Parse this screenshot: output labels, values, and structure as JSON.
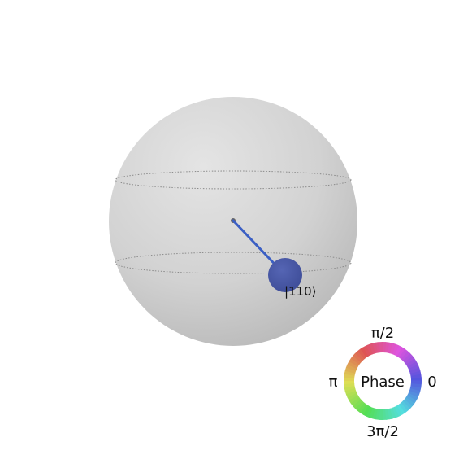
{
  "diagram": {
    "type": "qsphere",
    "states": [
      {
        "label": "|110⟩",
        "probability": 1.0,
        "phase": "0",
        "color": "#4a5aa8"
      }
    ]
  },
  "phase_legend": {
    "title": "Phase",
    "label_top": "π/2",
    "label_left": "π",
    "label_right": "0",
    "label_bottom": "3π/2"
  },
  "colors": {
    "sphere_light": "#e3e3e3",
    "sphere_dark": "#b8b8b8",
    "latitude_line": "#8a8a8a",
    "vector_line": "#3b5fc4",
    "state_point": "#4a5aa8",
    "origin_dot": "#666666"
  }
}
